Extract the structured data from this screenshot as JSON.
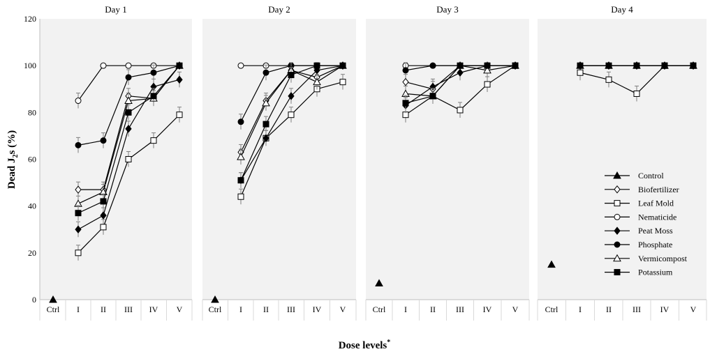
{
  "chart_data": {
    "type": "line",
    "xlabel": "Dose levels*",
    "ylabel": "Dead J2s (%)",
    "ylim": [
      0,
      120
    ],
    "yticks": [
      "0",
      "20",
      "40",
      "60",
      "80",
      "100",
      "120"
    ],
    "grid": false,
    "legend_position": "right-inside last panel",
    "legend": [
      "Control",
      "Biofertilizer",
      "Leaf Mold",
      "Nematicide",
      "Peat Moss",
      "Phosphate",
      "Vermicompost",
      "Potassium"
    ],
    "panels": [
      {
        "title": "Day 1",
        "categories": [
          "Ctrl",
          "I",
          "II",
          "III",
          "IV",
          "V"
        ],
        "control": 0,
        "series": [
          {
            "name": "Biofertilizer",
            "values": [
              47,
              47,
              87,
              86,
              100
            ]
          },
          {
            "name": "Leaf Mold",
            "values": [
              20,
              31,
              60,
              68,
              79
            ]
          },
          {
            "name": "Nematicide",
            "values": [
              85,
              100,
              100,
              100,
              100
            ]
          },
          {
            "name": "Peat Moss",
            "values": [
              30,
              36,
              73,
              91,
              94
            ]
          },
          {
            "name": "Phosphate",
            "values": [
              66,
              68,
              95,
              97,
              100
            ]
          },
          {
            "name": "Vermicompost",
            "values": [
              41,
              46,
              85,
              86,
              100
            ]
          },
          {
            "name": "Potassium",
            "values": [
              37,
              42,
              80,
              87,
              100
            ]
          }
        ]
      },
      {
        "title": "Day 2",
        "categories": [
          "Ctrl",
          "I",
          "II",
          "III",
          "IV",
          "V"
        ],
        "control": 0,
        "series": [
          {
            "name": "Biofertilizer",
            "values": [
              63,
              85,
              98,
              95,
              100
            ]
          },
          {
            "name": "Leaf Mold",
            "values": [
              44,
              69,
              79,
              90,
              93
            ]
          },
          {
            "name": "Nematicide",
            "values": [
              100,
              100,
              100,
              100,
              100
            ]
          },
          {
            "name": "Peat Moss",
            "values": [
              51,
              69,
              87,
              98,
              100
            ]
          },
          {
            "name": "Phosphate",
            "values": [
              76,
              97,
              100,
              100,
              100
            ]
          },
          {
            "name": "Vermicompost",
            "values": [
              61,
              84,
              98,
              93,
              100
            ]
          },
          {
            "name": "Potassium",
            "values": [
              51,
              75,
              96,
              100,
              100
            ]
          }
        ]
      },
      {
        "title": "Day 3",
        "categories": [
          "Ctrl",
          "I",
          "II",
          "III",
          "IV",
          "V"
        ],
        "control": 7,
        "series": [
          {
            "name": "Biofertilizer",
            "values": [
              93,
              90,
              100,
              100,
              100
            ]
          },
          {
            "name": "Leaf Mold",
            "values": [
              79,
              87,
              81,
              92,
              100
            ]
          },
          {
            "name": "Nematicide",
            "values": [
              100,
              100,
              100,
              100,
              100
            ]
          },
          {
            "name": "Peat Moss",
            "values": [
              83,
              91,
              97,
              100,
              100
            ]
          },
          {
            "name": "Phosphate",
            "values": [
              98,
              100,
              100,
              100,
              100
            ]
          },
          {
            "name": "Vermicompost",
            "values": [
              88,
              87,
              100,
              98,
              100
            ]
          },
          {
            "name": "Potassium",
            "values": [
              84,
              87,
              100,
              100,
              100
            ]
          }
        ]
      },
      {
        "title": "Day 4",
        "categories": [
          "Ctrl",
          "I",
          "II",
          "III",
          "IV",
          "V"
        ],
        "control": 15,
        "series": [
          {
            "name": "Biofertilizer",
            "values": [
              100,
              100,
              100,
              100,
              100
            ]
          },
          {
            "name": "Leaf Mold",
            "values": [
              97,
              94,
              88,
              100,
              100
            ]
          },
          {
            "name": "Nematicide",
            "values": [
              100,
              100,
              100,
              100,
              100
            ]
          },
          {
            "name": "Peat Moss",
            "values": [
              100,
              100,
              100,
              100,
              100
            ]
          },
          {
            "name": "Phosphate",
            "values": [
              100,
              100,
              100,
              100,
              100
            ]
          },
          {
            "name": "Vermicompost",
            "values": [
              100,
              100,
              100,
              100,
              100
            ]
          },
          {
            "name": "Potassium",
            "values": [
              100,
              100,
              100,
              100,
              100
            ]
          }
        ]
      }
    ]
  },
  "markers": {
    "Control": "triangle-filled",
    "Biofertilizer": "diamond-open",
    "Leaf Mold": "square-open",
    "Nematicide": "circle-open",
    "Peat Moss": "diamond-filled",
    "Phosphate": "circle-filled",
    "Vermicompost": "triangle-open",
    "Potassium": "square-filled"
  },
  "colors": {
    "panel_bg": "#f2f2f2",
    "ink": "#000000",
    "error_bar": "#7f7f7f"
  }
}
